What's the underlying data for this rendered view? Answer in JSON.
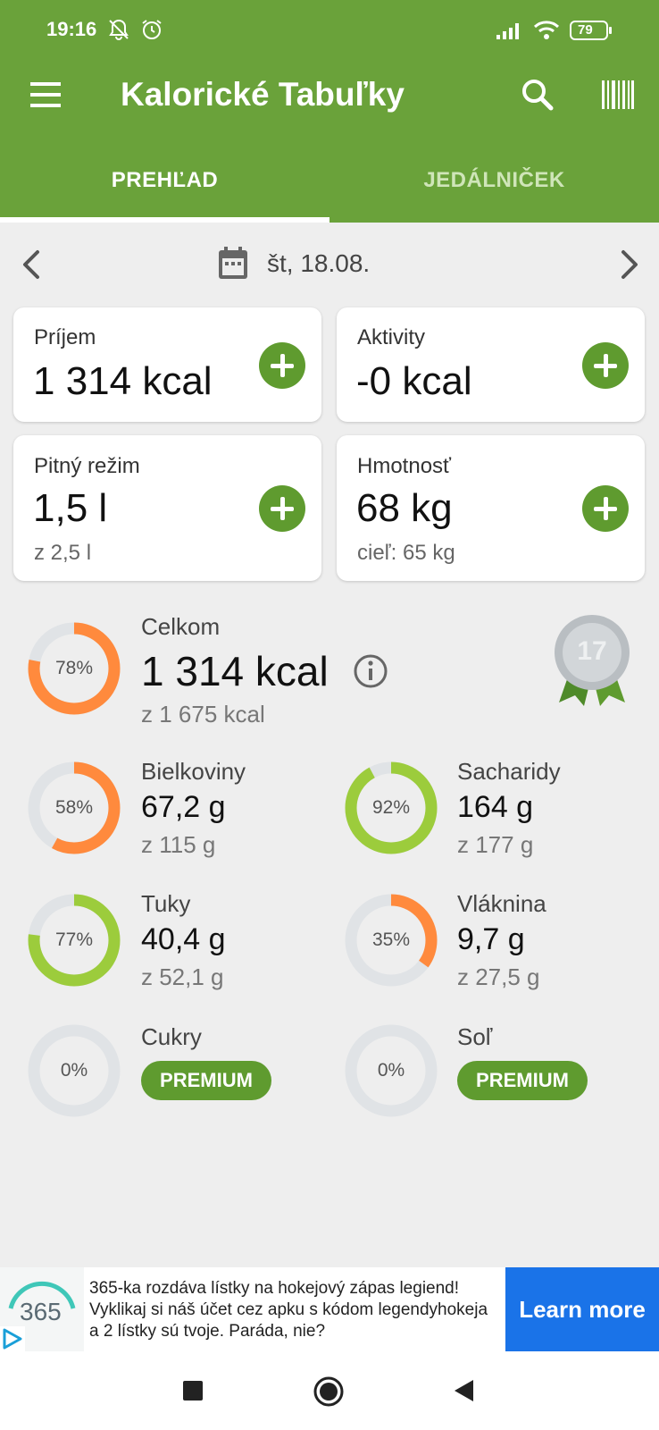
{
  "status_bar": {
    "time": "19:16",
    "battery": "79"
  },
  "toolbar": {
    "title": "Kalorické Tabuľky"
  },
  "tabs": [
    {
      "label": "PREHĽAD",
      "active": true
    },
    {
      "label": "JEDÁLNIČEK",
      "active": false
    }
  ],
  "date": {
    "label": "št, 18.08."
  },
  "cards": {
    "intake": {
      "label": "Príjem",
      "value": "1 314 kcal"
    },
    "activity": {
      "label": "Aktivity",
      "value": "-0 kcal"
    },
    "drinking": {
      "label": "Pitný režim",
      "value": "1,5 l",
      "sub": "z 2,5 l"
    },
    "weight": {
      "label": "Hmotnosť",
      "value": "68 kg",
      "sub": "cieľ: 65 kg"
    }
  },
  "total": {
    "label": "Celkom",
    "value": "1 314 kcal",
    "sub": "z 1 675 kcal",
    "percent": "78%",
    "fraction": 0.78,
    "badge": "17"
  },
  "nutrients": {
    "protein": {
      "label": "Bielkoviny",
      "value": "67,2 g",
      "sub": "z 115 g",
      "percent": "58%",
      "fraction": 0.58
    },
    "carbs": {
      "label": "Sacharidy",
      "value": "164 g",
      "sub": "z 177 g",
      "percent": "92%",
      "fraction": 0.92
    },
    "fat": {
      "label": "Tuky",
      "value": "40,4 g",
      "sub": "z 52,1 g",
      "percent": "77%",
      "fraction": 0.77
    },
    "fiber": {
      "label": "Vláknina",
      "value": "9,7 g",
      "sub": "z 27,5 g",
      "percent": "35%",
      "fraction": 0.35
    },
    "sugar": {
      "label": "Cukry",
      "percent": "0%",
      "fraction": 0,
      "premium": "PREMIUM"
    },
    "salt": {
      "label": "Soľ",
      "percent": "0%",
      "fraction": 0,
      "premium": "PREMIUM"
    }
  },
  "ad": {
    "logo_text": "365",
    "text": "365-ka rozdáva lístky na hokejový zápas legiend! Vyklikaj si náš účet cez apku s kódom legendyhokeja a 2 lístky sú tvoje. Paráda, nie?",
    "cta": "Learn more"
  },
  "colors": {
    "brand_green": "#6aa23a",
    "button_green": "#5f9b2f",
    "orange": "#ff8a3d",
    "lime": "#9ccc3c",
    "track": "#e0e3e6",
    "ad_blue": "#1a73e8"
  }
}
